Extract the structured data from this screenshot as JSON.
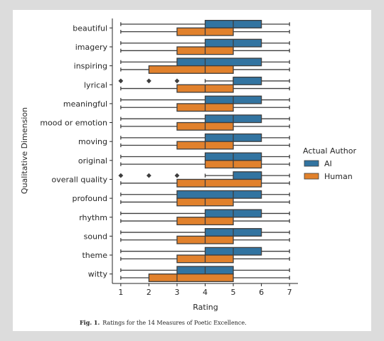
{
  "caption": {
    "label": "Fig. 1.",
    "text": "Ratings for the 14 Measures of Poetic Excellence."
  },
  "chart_data": {
    "type": "boxplot",
    "orientation": "horizontal",
    "xlabel": "Rating",
    "ylabel": "Qualitative Dimension",
    "xlim": [
      0.7,
      7.3
    ],
    "xticks": [
      1,
      2,
      3,
      4,
      5,
      6,
      7
    ],
    "legend": {
      "title": "Actual Author",
      "placement": "right"
    },
    "series": [
      {
        "name": "AI",
        "color": "#3274a1"
      },
      {
        "name": "Human",
        "color": "#e1812c"
      }
    ],
    "categories": [
      "beautiful",
      "imagery",
      "inspiring",
      "lyrical",
      "meaningful",
      "mood or emotion",
      "moving",
      "original",
      "overall quality",
      "profound",
      "rhythm",
      "sound",
      "theme",
      "witty"
    ],
    "boxes": [
      {
        "category": "beautiful",
        "AI": {
          "whislo": 1,
          "q1": 4,
          "med": 5,
          "q3": 6,
          "whishi": 7,
          "fliers": []
        },
        "Human": {
          "whislo": 1,
          "q1": 3,
          "med": 4,
          "q3": 5,
          "whishi": 7,
          "fliers": []
        }
      },
      {
        "category": "imagery",
        "AI": {
          "whislo": 1,
          "q1": 4,
          "med": 5,
          "q3": 6,
          "whishi": 7,
          "fliers": []
        },
        "Human": {
          "whislo": 1,
          "q1": 3,
          "med": 4,
          "q3": 5,
          "whishi": 7,
          "fliers": []
        }
      },
      {
        "category": "inspiring",
        "AI": {
          "whislo": 1,
          "q1": 3,
          "med": 4,
          "q3": 6,
          "whishi": 7,
          "fliers": []
        },
        "Human": {
          "whislo": 1,
          "q1": 2,
          "med": 4,
          "q3": 5,
          "whishi": 7,
          "fliers": []
        }
      },
      {
        "category": "lyrical",
        "AI": {
          "whislo": 4,
          "q1": 5,
          "med": 5,
          "q3": 6,
          "whishi": 7,
          "fliers": [
            1,
            2,
            3
          ]
        },
        "Human": {
          "whislo": 1,
          "q1": 3,
          "med": 4,
          "q3": 5,
          "whishi": 7,
          "fliers": []
        }
      },
      {
        "category": "meaningful",
        "AI": {
          "whislo": 1,
          "q1": 4,
          "med": 5,
          "q3": 6,
          "whishi": 7,
          "fliers": []
        },
        "Human": {
          "whislo": 1,
          "q1": 3,
          "med": 4,
          "q3": 5,
          "whishi": 7,
          "fliers": []
        }
      },
      {
        "category": "mood or emotion",
        "AI": {
          "whislo": 1,
          "q1": 4,
          "med": 5,
          "q3": 6,
          "whishi": 7,
          "fliers": []
        },
        "Human": {
          "whislo": 1,
          "q1": 3,
          "med": 4,
          "q3": 5,
          "whishi": 7,
          "fliers": []
        }
      },
      {
        "category": "moving",
        "AI": {
          "whislo": 1,
          "q1": 4,
          "med": 5,
          "q3": 6,
          "whishi": 7,
          "fliers": []
        },
        "Human": {
          "whislo": 1,
          "q1": 3,
          "med": 4,
          "q3": 5,
          "whishi": 7,
          "fliers": []
        }
      },
      {
        "category": "original",
        "AI": {
          "whislo": 1,
          "q1": 4,
          "med": 5,
          "q3": 6,
          "whishi": 7,
          "fliers": []
        },
        "Human": {
          "whislo": 1,
          "q1": 4,
          "med": 5,
          "q3": 6,
          "whishi": 7,
          "fliers": []
        }
      },
      {
        "category": "overall quality",
        "AI": {
          "whislo": 4,
          "q1": 5,
          "med": 6,
          "q3": 6,
          "whishi": 7,
          "fliers": [
            1,
            2,
            3
          ]
        },
        "Human": {
          "whislo": 1,
          "q1": 3,
          "med": 4,
          "q3": 6,
          "whishi": 7,
          "fliers": []
        }
      },
      {
        "category": "profound",
        "AI": {
          "whislo": 1,
          "q1": 3,
          "med": 5,
          "q3": 6,
          "whishi": 7,
          "fliers": []
        },
        "Human": {
          "whislo": 1,
          "q1": 3,
          "med": 4,
          "q3": 5,
          "whishi": 7,
          "fliers": []
        }
      },
      {
        "category": "rhythm",
        "AI": {
          "whislo": 1,
          "q1": 4,
          "med": 5,
          "q3": 6,
          "whishi": 7,
          "fliers": []
        },
        "Human": {
          "whislo": 1,
          "q1": 3,
          "med": 4,
          "q3": 5,
          "whishi": 7,
          "fliers": []
        }
      },
      {
        "category": "sound",
        "AI": {
          "whislo": 1,
          "q1": 4,
          "med": 5,
          "q3": 6,
          "whishi": 7,
          "fliers": []
        },
        "Human": {
          "whislo": 1,
          "q1": 3,
          "med": 4,
          "q3": 5,
          "whishi": 7,
          "fliers": []
        }
      },
      {
        "category": "theme",
        "AI": {
          "whislo": 1,
          "q1": 4,
          "med": 5,
          "q3": 6,
          "whishi": 7,
          "fliers": []
        },
        "Human": {
          "whislo": 1,
          "q1": 3,
          "med": 4,
          "q3": 5,
          "whishi": 7,
          "fliers": []
        }
      },
      {
        "category": "witty",
        "AI": {
          "whislo": 1,
          "q1": 3,
          "med": 4,
          "q3": 5,
          "whishi": 7,
          "fliers": []
        },
        "Human": {
          "whislo": 1,
          "q1": 2,
          "med": 3,
          "q3": 5,
          "whishi": 7,
          "fliers": []
        }
      }
    ]
  }
}
